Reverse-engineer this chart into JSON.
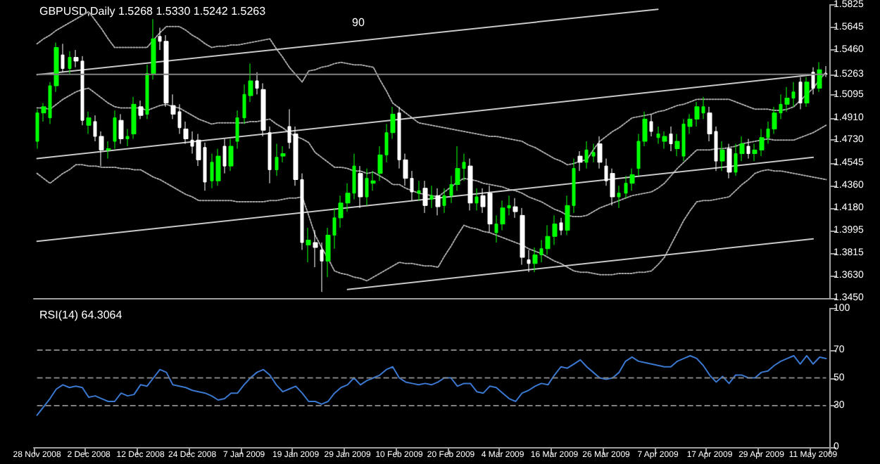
{
  "chart_data": [
    {
      "type": "candlestick",
      "title": "GBPUSD,Daily 1.5268 1.5330 1.5242 1.5263",
      "marker": "none",
      "colors": [
        "#00ff00",
        "#00ff00",
        "#00ff00",
        "#00ff00",
        "#ffffff",
        "#00ff00",
        "#ffffff",
        "#ffffff",
        "#00ff00",
        "#ffffff",
        "#ffffff",
        "#00ff00",
        "#00ff00",
        "#ffffff",
        "#00ff00",
        "#00ff00",
        "#ffffff",
        "#00ff00",
        "#00ff00",
        "#ffffff",
        "#ffffff",
        "#ffffff",
        "#ffffff",
        "#ffffff",
        "#ffffff",
        "#ffffff",
        "#ffffff",
        "#00ff00",
        "#00ff00",
        "#ffffff",
        "#00ff00",
        "#00ff00",
        "#00ff00",
        "#00ff00",
        "#ffffff",
        "#ffffff",
        "#ffffff",
        "#00ff00",
        "#00ff00",
        "#ffffff",
        "#ffffff",
        "#ffffff",
        "#00ff00",
        "#ffffff",
        "#ffffff",
        "#00ff00",
        "#00ff00",
        "#00ff00",
        "#00ff00",
        "#00ff00",
        "#ffffff",
        "#00ff00",
        "#00ff00",
        "#00ff00",
        "#00ff00",
        "#00ff00",
        "#ffffff",
        "#ffffff",
        "#ffffff",
        "#00ff00",
        "#ffffff",
        "#00ff00",
        "#ffffff",
        "#00ff00",
        "#00ff00",
        "#00ff00",
        "#00ff00",
        "#ffffff",
        "#00ff00",
        "#ffffff",
        "#ffffff",
        "#00ff00",
        "#00ff00",
        "#00ff00",
        "#ffffff",
        "#ffffff",
        "#ffffff",
        "#00ff00",
        "#00ff00",
        "#00ff00",
        "#00ff00",
        "#ffffff",
        "#00ff00",
        "#00ff00",
        "#ffffff",
        "#00ff00",
        "#00ff00",
        "#ffffff",
        "#ffffff",
        "#ffffff",
        "#00ff00",
        "#00ff00",
        "#00ff00",
        "#00ff00",
        "#00ff00",
        "#ffffff",
        "#00ff00",
        "#00ff00",
        "#ffffff",
        "#00ff00",
        "#00ff00",
        "#00ff00",
        "#00ff00",
        "#00ff00",
        "#ffffff",
        "#ffffff",
        "#00ff00",
        "#ffffff",
        "#00ff00",
        "#00ff00",
        "#ffffff",
        "#00ff00",
        "#00ff00",
        "#00ff00",
        "#00ff00",
        "#00ff00",
        "#00ff00",
        "#00ff00",
        "#ffffff",
        "#00ff00",
        "#ffffff",
        "#00ff00",
        "#ffffff"
      ],
      "tick_labels": "y",
      "annotations": [
        "90"
      ],
      "categories": [
        "28 Nov 2008",
        null,
        null,
        null,
        null,
        null,
        null,
        null,
        "2 Dec 2008",
        null,
        null,
        null,
        null,
        null,
        null,
        null,
        "12 Dec 2008",
        null,
        null,
        null,
        null,
        null,
        null,
        null,
        "24 Dec 2008",
        null,
        null,
        null,
        null,
        null,
        null,
        null,
        "7 Jan 2009",
        null,
        null,
        null,
        null,
        null,
        null,
        null,
        "19 Jan 2009",
        null,
        null,
        null,
        null,
        null,
        null,
        null,
        "29 Jan 2009",
        null,
        null,
        null,
        null,
        null,
        null,
        null,
        "10 Feb 2009",
        null,
        null,
        null,
        null,
        null,
        null,
        null,
        "20 Feb 2009",
        null,
        null,
        null,
        null,
        null,
        null,
        null,
        "4 Mar 2009",
        null,
        null,
        null,
        null,
        null,
        null,
        null,
        "16 Mar 2009",
        null,
        null,
        null,
        null,
        null,
        null,
        null,
        "26 Mar 2009",
        null,
        null,
        null,
        null,
        null,
        null,
        null,
        "7 Apr 2009",
        null,
        null,
        null,
        null,
        null,
        null,
        null,
        "17 Apr 2009",
        null,
        null,
        null,
        null,
        null,
        null,
        null,
        "29 Apr 2009",
        null,
        null,
        null,
        null,
        null,
        null,
        null,
        "11 May 2009",
        null,
        null
      ],
      "ohlc": [
        [
          1.472,
          1.498,
          1.466,
          1.495
        ],
        [
          1.495,
          1.503,
          1.488,
          1.5
        ],
        [
          1.491,
          1.52,
          1.486,
          1.517
        ],
        [
          1.517,
          1.552,
          1.512,
          1.548
        ],
        [
          1.542,
          1.551,
          1.528,
          1.531
        ],
        [
          1.531,
          1.545,
          1.526,
          1.54
        ],
        [
          1.54,
          1.546,
          1.532,
          1.537
        ],
        [
          1.537,
          1.541,
          1.485,
          1.489
        ],
        [
          1.485,
          1.496,
          1.478,
          1.491
        ],
        [
          1.488,
          1.493,
          1.472,
          1.476
        ],
        [
          1.476,
          1.48,
          1.452,
          1.465
        ],
        [
          1.465,
          1.472,
          1.458,
          1.466
        ],
        [
          1.472,
          1.497,
          1.466,
          1.491
        ],
        [
          1.489,
          1.494,
          1.47,
          1.474
        ],
        [
          1.474,
          1.482,
          1.468,
          1.476
        ],
        [
          1.478,
          1.508,
          1.474,
          1.502
        ],
        [
          1.5,
          1.505,
          1.49,
          1.493
        ],
        [
          1.494,
          1.534,
          1.49,
          1.527
        ],
        [
          1.527,
          1.571,
          1.522,
          1.555
        ],
        [
          1.557,
          1.564,
          1.546,
          1.553
        ],
        [
          1.553,
          1.558,
          1.5,
          1.503
        ],
        [
          1.501,
          1.51,
          1.49,
          1.494
        ],
        [
          1.496,
          1.502,
          1.478,
          1.483
        ],
        [
          1.482,
          1.488,
          1.47,
          1.474
        ],
        [
          1.473,
          1.48,
          1.462,
          1.468
        ],
        [
          1.473,
          1.478,
          1.452,
          1.457
        ],
        [
          1.467,
          1.471,
          1.432,
          1.439
        ],
        [
          1.44,
          1.462,
          1.434,
          1.455
        ],
        [
          1.44,
          1.466,
          1.436,
          1.46
        ],
        [
          1.468,
          1.474,
          1.446,
          1.452
        ],
        [
          1.452,
          1.474,
          1.448,
          1.468
        ],
        [
          1.472,
          1.497,
          1.466,
          1.491
        ],
        [
          1.491,
          1.518,
          1.486,
          1.51
        ],
        [
          1.509,
          1.535,
          1.504,
          1.521
        ],
        [
          1.521,
          1.528,
          1.51,
          1.515
        ],
        [
          1.514,
          1.519,
          1.476,
          1.481
        ],
        [
          1.479,
          1.484,
          1.438,
          1.449
        ],
        [
          1.449,
          1.47,
          1.444,
          1.459
        ],
        [
          1.46,
          1.468,
          1.455,
          1.462
        ],
        [
          1.484,
          1.498,
          1.466,
          1.471
        ],
        [
          1.478,
          1.484,
          1.436,
          1.441
        ],
        [
          1.441,
          1.446,
          1.384,
          1.39
        ],
        [
          1.388,
          1.402,
          1.374,
          1.392
        ],
        [
          1.39,
          1.4,
          1.37,
          1.386
        ],
        [
          1.384,
          1.39,
          1.35,
          1.375
        ],
        [
          1.375,
          1.402,
          1.362,
          1.396
        ],
        [
          1.396,
          1.418,
          1.385,
          1.41
        ],
        [
          1.41,
          1.428,
          1.402,
          1.422
        ],
        [
          1.422,
          1.438,
          1.415,
          1.43
        ],
        [
          1.43,
          1.462,
          1.425,
          1.452
        ],
        [
          1.446,
          1.452,
          1.418,
          1.427
        ],
        [
          1.427,
          1.45,
          1.42,
          1.442
        ],
        [
          1.438,
          1.448,
          1.432,
          1.44
        ],
        [
          1.446,
          1.468,
          1.44,
          1.461
        ],
        [
          1.461,
          1.486,
          1.455,
          1.479
        ],
        [
          1.479,
          1.5,
          1.474,
          1.494
        ],
        [
          1.495,
          1.5,
          1.45,
          1.457
        ],
        [
          1.457,
          1.462,
          1.436,
          1.442
        ],
        [
          1.442,
          1.448,
          1.424,
          1.431
        ],
        [
          1.43,
          1.44,
          1.424,
          1.432
        ],
        [
          1.434,
          1.44,
          1.414,
          1.42
        ],
        [
          1.425,
          1.436,
          1.418,
          1.428
        ],
        [
          1.428,
          1.434,
          1.412,
          1.419
        ],
        [
          1.42,
          1.434,
          1.414,
          1.428
        ],
        [
          1.428,
          1.444,
          1.422,
          1.437
        ],
        [
          1.437,
          1.468,
          1.432,
          1.45
        ],
        [
          1.45,
          1.462,
          1.44,
          1.455
        ],
        [
          1.452,
          1.458,
          1.416,
          1.422
        ],
        [
          1.422,
          1.434,
          1.416,
          1.427
        ],
        [
          1.428,
          1.434,
          1.414,
          1.419
        ],
        [
          1.43,
          1.436,
          1.398,
          1.405
        ],
        [
          1.398,
          1.412,
          1.39,
          1.405
        ],
        [
          1.405,
          1.424,
          1.4,
          1.418
        ],
        [
          1.418,
          1.428,
          1.412,
          1.42
        ],
        [
          1.419,
          1.426,
          1.41,
          1.415
        ],
        [
          1.412,
          1.418,
          1.372,
          1.378
        ],
        [
          1.376,
          1.384,
          1.366,
          1.373
        ],
        [
          1.373,
          1.386,
          1.366,
          1.38
        ],
        [
          1.38,
          1.392,
          1.374,
          1.385
        ],
        [
          1.385,
          1.404,
          1.38,
          1.395
        ],
        [
          1.395,
          1.412,
          1.388,
          1.405
        ],
        [
          1.406,
          1.41,
          1.396,
          1.4
        ],
        [
          1.4,
          1.428,
          1.396,
          1.42
        ],
        [
          1.42,
          1.458,
          1.414,
          1.45
        ],
        [
          1.46,
          1.464,
          1.448,
          1.455
        ],
        [
          1.455,
          1.472,
          1.45,
          1.465
        ],
        [
          1.46,
          1.47,
          1.455,
          1.463
        ],
        [
          1.47,
          1.476,
          1.45,
          1.455
        ],
        [
          1.452,
          1.458,
          1.436,
          1.44
        ],
        [
          1.446,
          1.45,
          1.42,
          1.427
        ],
        [
          1.427,
          1.436,
          1.418,
          1.43
        ],
        [
          1.43,
          1.444,
          1.426,
          1.438
        ],
        [
          1.438,
          1.45,
          1.432,
          1.445
        ],
        [
          1.45,
          1.478,
          1.444,
          1.472
        ],
        [
          1.472,
          1.496,
          1.468,
          1.49
        ],
        [
          1.488,
          1.494,
          1.476,
          1.48
        ],
        [
          1.475,
          1.484,
          1.47,
          1.478
        ],
        [
          1.472,
          1.48,
          1.466,
          1.476
        ],
        [
          1.478,
          1.484,
          1.464,
          1.47
        ],
        [
          1.466,
          1.478,
          1.46,
          1.472
        ],
        [
          1.46,
          1.49,
          1.456,
          1.486
        ],
        [
          1.484,
          1.494,
          1.478,
          1.49
        ],
        [
          1.49,
          1.504,
          1.484,
          1.5
        ],
        [
          1.495,
          1.508,
          1.49,
          1.5
        ],
        [
          1.495,
          1.5,
          1.472,
          1.478
        ],
        [
          1.48,
          1.484,
          1.448,
          1.456
        ],
        [
          1.456,
          1.472,
          1.448,
          1.465
        ],
        [
          1.466,
          1.47,
          1.442,
          1.447
        ],
        [
          1.447,
          1.47,
          1.444,
          1.462
        ],
        [
          1.462,
          1.476,
          1.456,
          1.47
        ],
        [
          1.468,
          1.474,
          1.458,
          1.462
        ],
        [
          1.462,
          1.47,
          1.456,
          1.465
        ],
        [
          1.465,
          1.482,
          1.46,
          1.475
        ],
        [
          1.475,
          1.488,
          1.47,
          1.482
        ],
        [
          1.482,
          1.5,
          1.478,
          1.495
        ],
        [
          1.495,
          1.51,
          1.49,
          1.502
        ],
        [
          1.502,
          1.516,
          1.496,
          1.507
        ],
        [
          1.507,
          1.52,
          1.5,
          1.512
        ],
        [
          1.52,
          1.524,
          1.498,
          1.503
        ],
        [
          1.503,
          1.524,
          1.5,
          1.52
        ],
        [
          1.528,
          1.532,
          1.51,
          1.515
        ],
        [
          1.515,
          1.536,
          1.512,
          1.53
        ],
        [
          1.5268,
          1.533,
          1.5242,
          1.5263
        ]
      ],
      "series": [
        {
          "type": "line",
          "color": "#a0a0a0",
          "line_style": "dotted",
          "values": [
            1.551,
            1.555,
            1.558,
            1.562,
            1.565,
            1.568,
            1.571,
            1.574,
            1.577,
            1.57,
            1.563,
            1.555,
            1.548,
            1.548,
            1.548,
            1.548,
            1.548,
            1.548,
            1.554,
            1.56,
            1.565,
            1.565,
            1.565,
            1.562,
            1.558,
            1.555,
            1.551,
            1.548,
            1.549,
            1.549,
            1.55,
            1.55,
            1.551,
            1.552,
            1.553,
            1.554,
            1.555,
            1.547,
            1.54,
            1.532,
            1.526,
            1.52,
            1.529,
            1.53,
            1.532,
            1.533,
            1.535,
            1.536,
            1.535,
            1.534,
            1.534,
            1.533,
            1.532,
            1.522,
            1.513,
            1.503,
            1.499,
            1.495,
            1.491,
            1.487,
            1.486,
            1.485,
            1.484,
            1.483,
            1.482,
            1.481,
            1.48,
            1.479,
            1.478,
            1.477,
            1.476,
            1.476,
            1.475,
            1.474,
            1.473,
            1.472,
            1.469,
            1.467,
            1.464,
            1.461,
            1.458,
            1.456,
            1.453,
            1.454,
            1.456,
            1.457,
            1.465,
            1.472,
            1.476,
            1.48,
            1.483,
            1.487,
            1.491,
            1.492,
            1.493,
            1.494,
            1.496,
            1.497,
            1.499,
            1.501,
            1.502,
            1.504,
            1.506,
            1.506,
            1.506,
            1.506,
            1.506,
            1.506,
            1.504,
            1.502,
            1.5,
            1.498,
            1.498,
            1.498,
            1.497,
            1.497,
            1.498,
            1.5,
            1.505,
            1.51,
            1.515,
            1.522,
            1.528
          ]
        },
        {
          "type": "line",
          "color": "#a0a0a0",
          "line_style": "dotted",
          "values": [
            1.499,
            1.499,
            1.498,
            1.502,
            1.506,
            1.509,
            1.512,
            1.514,
            1.515,
            1.511,
            1.507,
            1.503,
            1.5,
            1.499,
            1.499,
            1.499,
            1.499,
            1.497,
            1.499,
            1.501,
            1.502,
            1.5,
            1.499,
            1.496,
            1.493,
            1.49,
            1.488,
            1.486,
            1.487,
            1.487,
            1.487,
            1.487,
            1.487,
            1.488,
            1.488,
            1.489,
            1.49,
            1.486,
            1.483,
            1.479,
            1.476,
            1.474,
            1.471,
            1.463,
            1.459,
            1.455,
            1.451,
            1.451,
            1.45,
            1.448,
            1.448,
            1.446,
            1.447,
            1.444,
            1.441,
            1.437,
            1.437,
            1.434,
            1.432,
            1.43,
            1.429,
            1.428,
            1.427,
            1.431,
            1.435,
            1.439,
            1.442,
            1.441,
            1.44,
            1.438,
            1.437,
            1.436,
            1.435,
            1.433,
            1.432,
            1.43,
            1.427,
            1.425,
            1.423,
            1.42,
            1.417,
            1.415,
            1.412,
            1.411,
            1.411,
            1.412,
            1.415,
            1.418,
            1.42,
            1.422,
            1.424,
            1.426,
            1.428,
            1.429,
            1.43,
            1.431,
            1.434,
            1.438,
            1.444,
            1.45,
            1.455,
            1.46,
            1.465,
            1.465,
            1.465,
            1.466,
            1.466,
            1.467,
            1.468,
            1.47,
            1.471,
            1.472,
            1.473,
            1.474,
            1.473,
            1.473,
            1.473,
            1.473,
            1.475,
            1.477,
            1.479,
            1.482,
            1.485
          ]
        },
        {
          "type": "line",
          "color": "#a0a0a0",
          "line_style": "dotted",
          "values": [
            1.446,
            1.442,
            1.438,
            1.442,
            1.446,
            1.449,
            1.453,
            1.453,
            1.452,
            1.452,
            1.451,
            1.451,
            1.451,
            1.45,
            1.45,
            1.449,
            1.449,
            1.446,
            1.443,
            1.441,
            1.438,
            1.435,
            1.432,
            1.429,
            1.427,
            1.424,
            1.424,
            1.424,
            1.424,
            1.424,
            1.424,
            1.423,
            1.423,
            1.423,
            1.423,
            1.423,
            1.424,
            1.424,
            1.425,
            1.426,
            1.426,
            1.427,
            1.412,
            1.396,
            1.386,
            1.377,
            1.367,
            1.365,
            1.364,
            1.362,
            1.361,
            1.359,
            1.362,
            1.365,
            1.368,
            1.371,
            1.374,
            1.373,
            1.373,
            1.372,
            1.371,
            1.371,
            1.37,
            1.379,
            1.387,
            1.396,
            1.404,
            1.402,
            1.401,
            1.399,
            1.398,
            1.396,
            1.394,
            1.392,
            1.39,
            1.388,
            1.385,
            1.383,
            1.381,
            1.378,
            1.375,
            1.373,
            1.37,
            1.367,
            1.366,
            1.366,
            1.365,
            1.364,
            1.364,
            1.364,
            1.365,
            1.365,
            1.365,
            1.366,
            1.366,
            1.367,
            1.372,
            1.378,
            1.388,
            1.398,
            1.408,
            1.416,
            1.423,
            1.424,
            1.424,
            1.425,
            1.426,
            1.427,
            1.432,
            1.437,
            1.441,
            1.446,
            1.448,
            1.449,
            1.448,
            1.448,
            1.447,
            1.446,
            1.445,
            1.444,
            1.443,
            1.442,
            1.441
          ]
        },
        {
          "type": "line",
          "color": "#c8c8c8",
          "line_style": "solid",
          "x": [
            "28 Nov 2008",
            "7 Apr 2009"
          ],
          "values": [
            1.526,
            1.579
          ]
        },
        {
          "type": "line",
          "color": "#c8c8c8",
          "line_style": "solid",
          "x": [
            "28 Nov 2008",
            "11 May 2009"
          ],
          "values": [
            1.458,
            1.526
          ]
        },
        {
          "type": "line",
          "color": "#c8c8c8",
          "line_style": "solid",
          "x": [
            "28 Nov 2008",
            "11 May 2009"
          ],
          "values": [
            1.391,
            1.459
          ]
        },
        {
          "type": "line",
          "color": "#c8c8c8",
          "line_style": "solid",
          "x": [
            "29 Jan 2009",
            "11 May 2009"
          ],
          "values": [
            1.352,
            1.393
          ]
        }
      ],
      "ylim": [
        1.345,
        1.5825
      ],
      "yticks": [
        1.5825,
        1.5645,
        {
          "value": 1.546,
          "label": "1.5460"
        },
        1.5263,
        1.5095,
        {
          "value": 1.491,
          "label": "1.4910"
        },
        {
          "value": 1.473,
          "label": "1.4730"
        },
        1.4545,
        {
          "value": 1.436,
          "label": "1.4360"
        },
        {
          "value": 1.418,
          "label": "1.4180"
        },
        1.3995,
        1.3815,
        {
          "value": 1.363,
          "label": "1.3630"
        },
        {
          "value": 1.345,
          "label": "1.3450"
        }
      ],
      "ref_lines": [
        {
          "axis": "y",
          "value": 1.5263,
          "color": "#808080",
          "line_style": "solid"
        }
      ]
    },
    {
      "type": "line",
      "title": "RSI(14) 64.3064",
      "marker": "none",
      "line_style": "solid",
      "categories": [
        "28 Nov 2008",
        null,
        null,
        null,
        null,
        null,
        null,
        null,
        "2 Dec 2008",
        null,
        null,
        null,
        null,
        null,
        null,
        null,
        "12 Dec 2008",
        null,
        null,
        null,
        null,
        null,
        null,
        null,
        "24 Dec 2008",
        null,
        null,
        null,
        null,
        null,
        null,
        null,
        "7 Jan 2009",
        null,
        null,
        null,
        null,
        null,
        null,
        null,
        "19 Jan 2009",
        null,
        null,
        null,
        null,
        null,
        null,
        null,
        "29 Jan 2009",
        null,
        null,
        null,
        null,
        null,
        null,
        null,
        "10 Feb 2009",
        null,
        null,
        null,
        null,
        null,
        null,
        null,
        "20 Feb 2009",
        null,
        null,
        null,
        null,
        null,
        null,
        null,
        "4 Mar 2009",
        null,
        null,
        null,
        null,
        null,
        null,
        null,
        "16 Mar 2009",
        null,
        null,
        null,
        null,
        null,
        null,
        null,
        "26 Mar 2009",
        null,
        null,
        null,
        null,
        null,
        null,
        null,
        "7 Apr 2009",
        null,
        null,
        null,
        null,
        null,
        null,
        null,
        "17 Apr 2009",
        null,
        null,
        null,
        null,
        null,
        null,
        null,
        "29 Apr 2009",
        null,
        null,
        null,
        null,
        null,
        null,
        null,
        "11 May 2009",
        null,
        null
      ],
      "series": [
        {
          "color": "#3a78d0",
          "values": [
            23,
            29,
            35,
            42,
            45,
            43,
            44,
            43,
            36,
            37,
            35,
            33,
            33,
            39,
            37,
            38,
            45,
            44,
            50,
            56,
            54,
            45,
            44,
            43,
            41,
            40,
            39,
            37,
            34,
            35,
            39,
            39,
            45,
            50,
            54,
            56,
            52,
            45,
            40,
            42,
            44,
            39,
            33,
            33,
            31,
            33,
            39,
            43,
            45,
            50,
            45,
            48,
            50,
            52,
            56,
            58,
            50,
            47,
            46,
            45,
            46,
            45,
            47,
            50,
            50,
            44,
            46,
            46,
            40,
            39,
            44,
            43,
            39,
            35,
            33,
            39,
            41,
            44,
            46,
            45,
            52,
            58,
            57,
            60,
            63,
            58,
            54,
            50,
            49,
            50,
            54,
            62,
            65,
            62,
            61,
            60,
            59,
            58,
            58,
            62,
            64,
            66,
            64,
            59,
            52,
            47,
            51,
            46,
            52,
            52,
            50,
            50,
            54,
            55,
            59,
            62,
            64,
            66,
            60,
            66,
            60,
            65,
            64
          ]
        }
      ],
      "ylim": [
        0,
        100
      ],
      "yticks": [
        0,
        30,
        50,
        70,
        100
      ],
      "ref_lines": [
        {
          "axis": "y",
          "value": 70,
          "color": "#808080",
          "line_style": "dashed"
        },
        {
          "axis": "y",
          "value": 50,
          "color": "#808080",
          "line_style": "dashed"
        },
        {
          "axis": "y",
          "value": 30,
          "color": "#808080",
          "line_style": "dashed"
        }
      ]
    }
  ]
}
